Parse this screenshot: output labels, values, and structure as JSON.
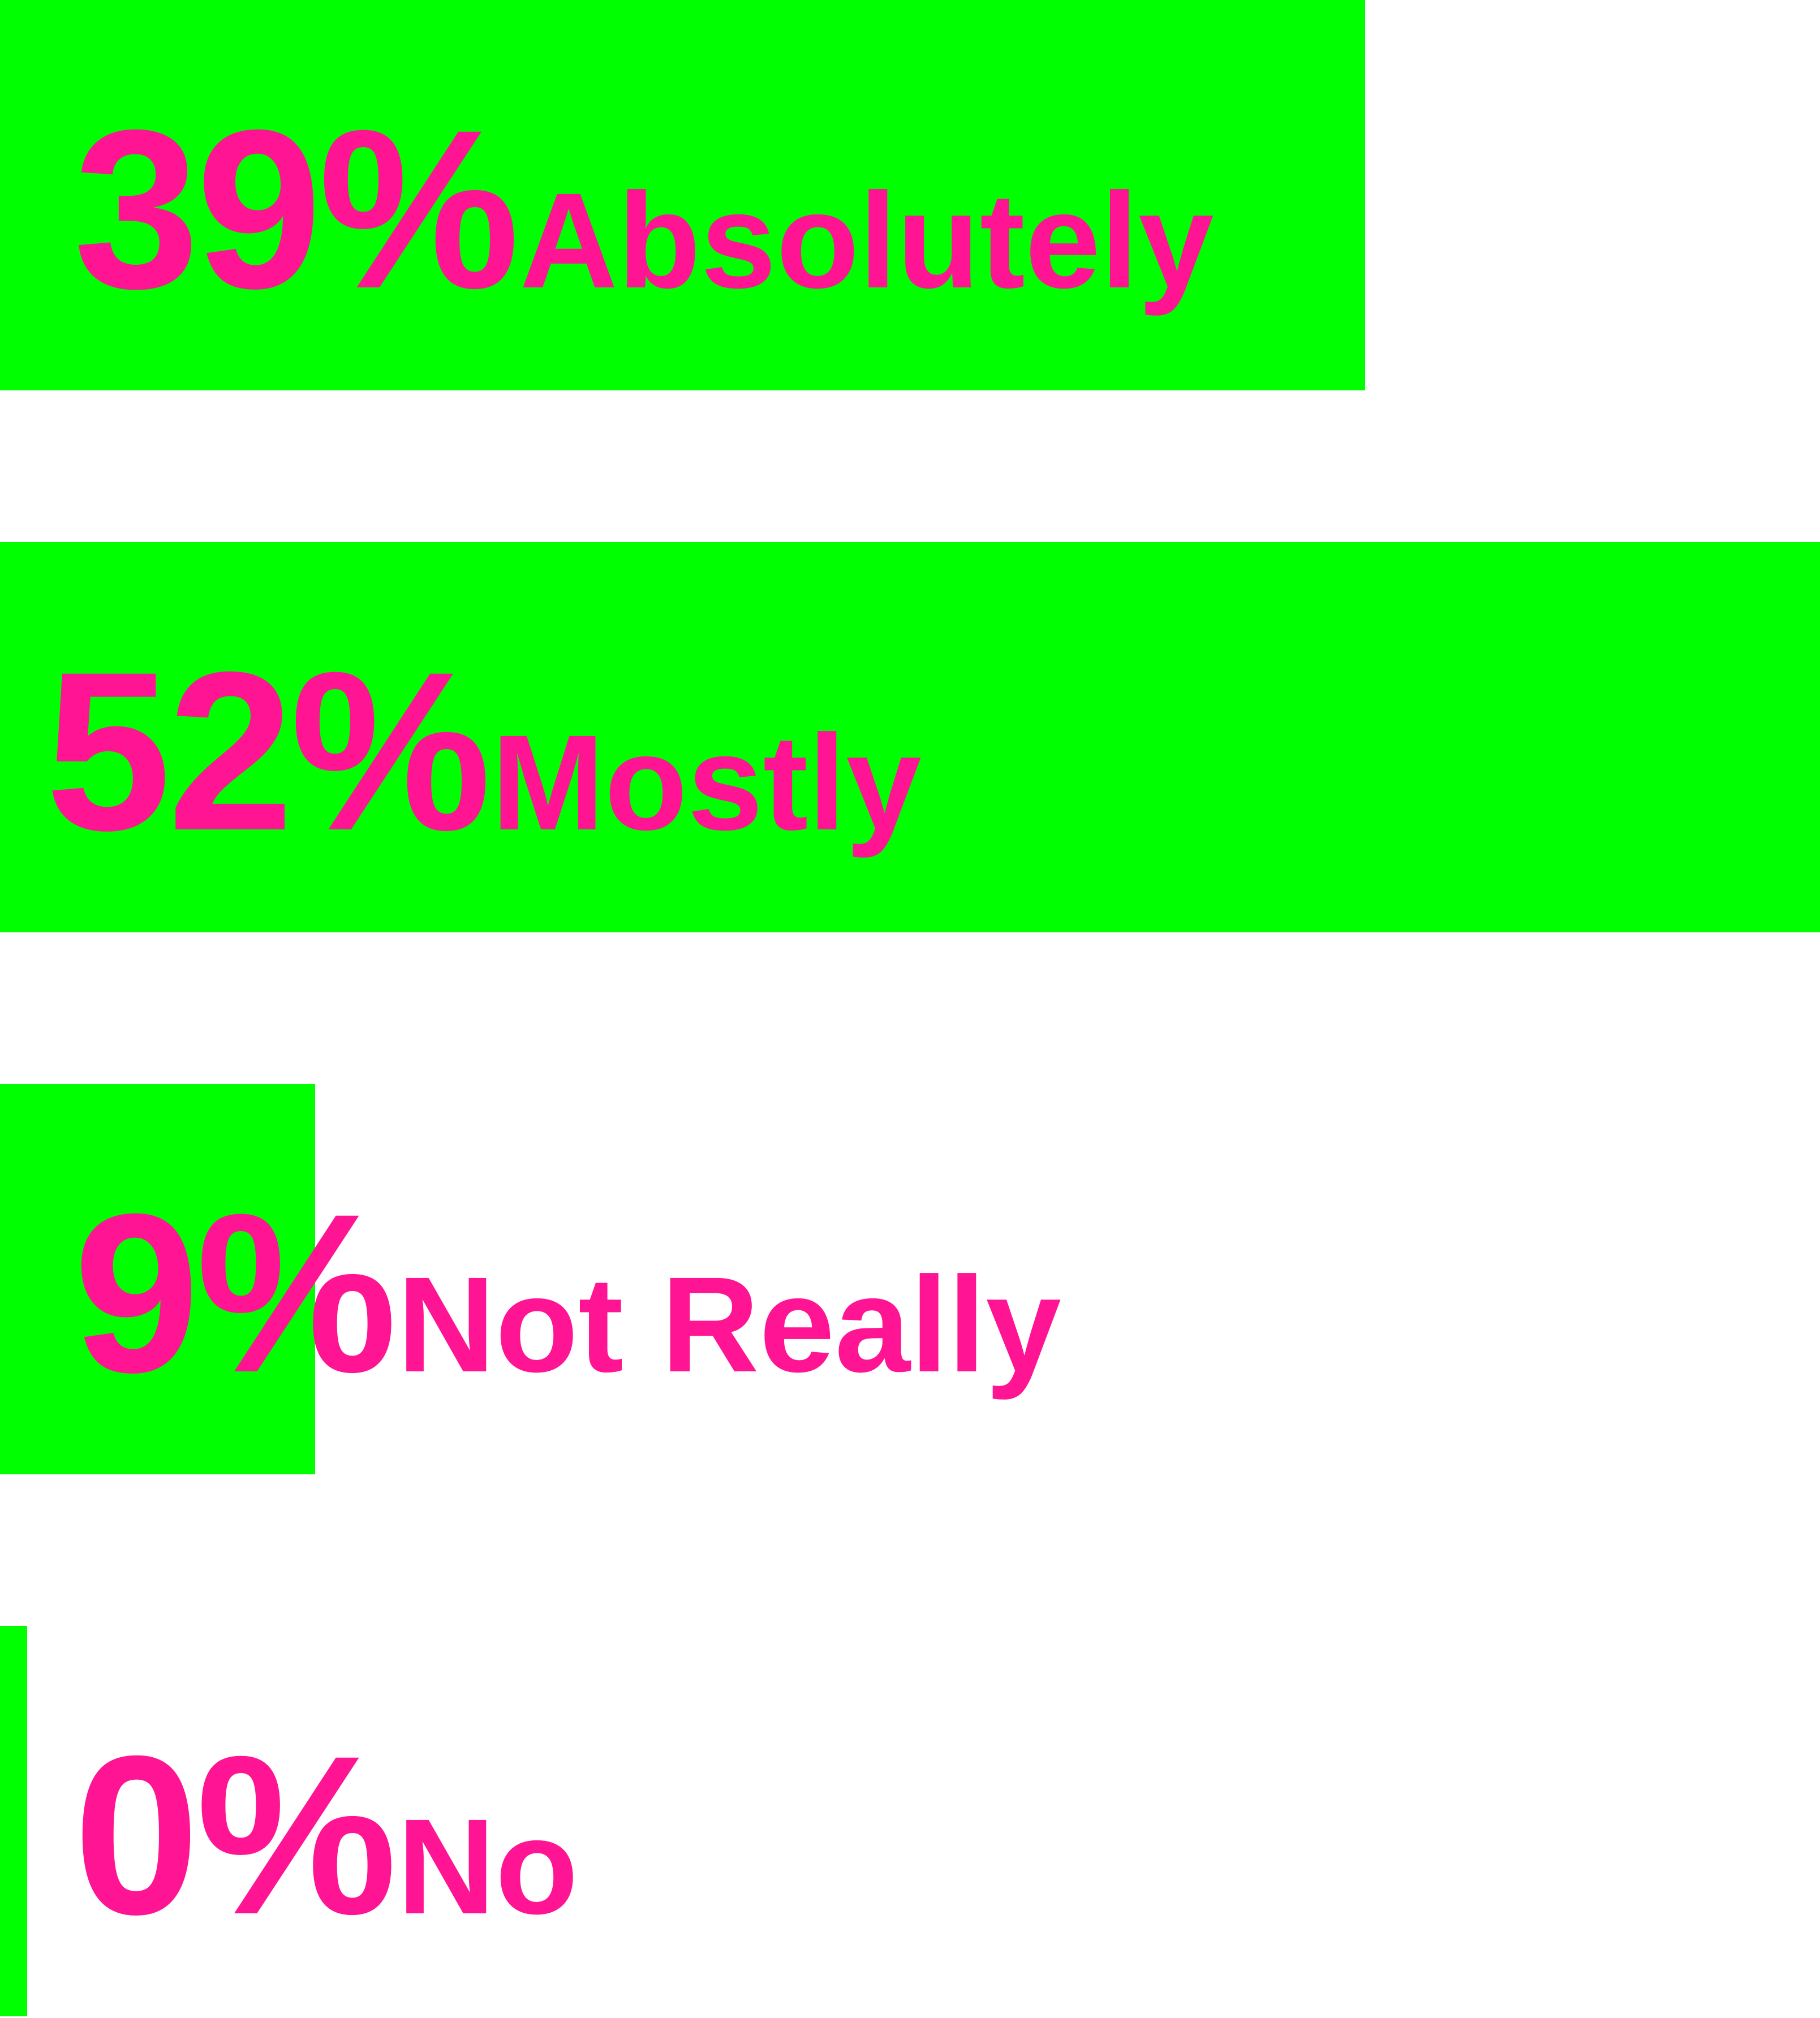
{
  "chart_data": {
    "type": "bar",
    "orientation": "horizontal",
    "categories": [
      "Absolutely",
      "Mostly",
      "Not Really",
      "No"
    ],
    "values": [
      39,
      52,
      9,
      0
    ],
    "value_labels": [
      "39%",
      "52%",
      "9%",
      "0%"
    ],
    "unit": "%",
    "title": "",
    "xlabel": "",
    "ylabel": "",
    "xlim": [
      0,
      52
    ],
    "grid": false,
    "legend": "none"
  },
  "colors": {
    "bar": "#00ff00",
    "text": "#ff1493",
    "background": "#ffffff"
  }
}
